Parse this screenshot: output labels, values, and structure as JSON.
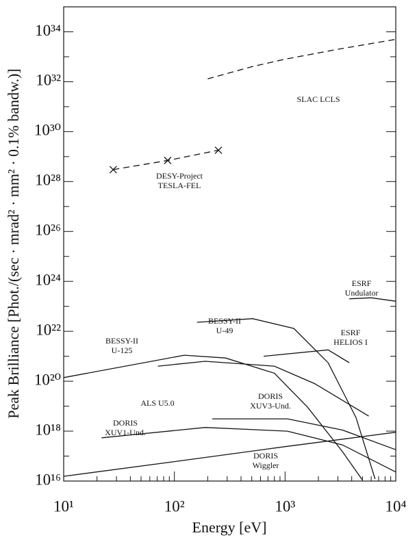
{
  "chart_data": {
    "type": "line",
    "xlabel": "Energy [eV]",
    "ylabel": "Peak Brilliance [Phot./(sec · mrad² · mm² · 0.1% bandw.)]",
    "xscale": "log",
    "yscale": "log",
    "xlim": [
      10,
      10000
    ],
    "ylim": [
      1e+16,
      1e+35
    ],
    "xticks": [
      {
        "value": 10,
        "label": "10¹"
      },
      {
        "value": 100,
        "label": "10²"
      },
      {
        "value": 1000,
        "label": "10³"
      },
      {
        "value": 10000,
        "label": "10⁴"
      }
    ],
    "yticks": [
      {
        "value": 1e+16,
        "label": "10¹⁶"
      },
      {
        "value": 1e+18,
        "label": "10¹⁸"
      },
      {
        "value": 1e+20,
        "label": "10²⁰"
      },
      {
        "value": 1e+22,
        "label": "10²²"
      },
      {
        "value": 1e+24,
        "label": "10²⁴"
      },
      {
        "value": 1e+26,
        "label": "10²⁶"
      },
      {
        "value": 1e+28,
        "label": "10²⁸"
      },
      {
        "value": 1e+30,
        "label": "10³⁰"
      },
      {
        "value": 1e+32,
        "label": "10³²"
      },
      {
        "value": 1e+34,
        "label": "10³⁴"
      }
    ],
    "yminor_ticks": [
      1e+17,
      1e+19,
      1e+21,
      1e+23,
      1e+25,
      1e+27,
      1e+29,
      1e+31,
      1e+33
    ],
    "xminor_ticks": [
      20,
      30,
      40,
      50,
      60,
      70,
      80,
      90,
      200,
      300,
      400,
      500,
      600,
      700,
      800,
      900,
      2000,
      3000,
      4000,
      5000,
      6000,
      7000,
      8000,
      9000
    ],
    "color": "#111111",
    "series": [
      {
        "label": [
          "SLAC LCLS"
        ],
        "dashed": true,
        "x": [
          200,
          500,
          1000,
          3000,
          10000
        ],
        "values": [
          1.3e+32,
          4e+32,
          8e+32,
          2e+33,
          5e+33
        ]
      },
      {
        "label": [
          "DESY-Project",
          "TESLA-FEL"
        ],
        "dashed": true,
        "marker": "x",
        "x": [
          28,
          87,
          250
        ],
        "values": [
          3e+28,
          7e+28,
          1.8e+29
        ]
      },
      {
        "label": [
          "ESRF",
          "Undulator"
        ],
        "x": [
          3800,
          6000,
          10000
        ],
        "values": [
          2e+23,
          2.2e+23,
          1.6e+23
        ]
      },
      {
        "label": [
          "BESSY-II",
          "U-49"
        ],
        "x": [
          160,
          510,
          1200,
          2450,
          4370,
          6500
        ],
        "values": [
          2.3e+22,
          3.2e+22,
          1.3e+22,
          5.5e+20,
          3.5e+18,
          1.2e+16
        ]
      },
      {
        "label": [
          "ESRF",
          "HELIOS I"
        ],
        "x": [
          640,
          2450,
          3800
        ],
        "values": [
          1e+21,
          1.8e+21,
          5.5e+20
        ]
      },
      {
        "label": [
          "BESSY-II",
          "U-125"
        ],
        "x": [
          10,
          123,
          290,
          800,
          1600,
          3300,
          5000
        ],
        "values": [
          1.4e+20,
          1.1e+21,
          8.5e+20,
          2.1e+20,
          9e+18,
          1.5e+17,
          1.1e+16
        ]
      },
      {
        "label": [
          "ALS U5.0"
        ],
        "x": [
          71,
          190,
          800,
          1850,
          5700
        ],
        "values": [
          4e+20,
          6.3e+20,
          4e+20,
          8e+19,
          4e+18
        ]
      },
      {
        "label": [
          "DORIS",
          "XUV3-Und."
        ],
        "x": [
          220,
          1050,
          3300,
          10000
        ],
        "values": [
          3.1e+18,
          3.1e+18,
          1.1e+18,
          1.8e+17
        ]
      },
      {
        "label": [
          "DORIS",
          "XUV1-Und."
        ],
        "x": [
          22,
          190,
          1050,
          3300,
          10000
        ],
        "values": [
          5.4e+17,
          1.4e+18,
          1e+18,
          2.8e+17,
          2.3e+16
        ]
      },
      {
        "label": [
          "DORIS",
          "Wiggler"
        ],
        "x": [
          10,
          100,
          1000,
          10000
        ],
        "values": [
          1.55e+16,
          6e+16,
          2.4e+17,
          9e+17
        ]
      }
    ]
  }
}
